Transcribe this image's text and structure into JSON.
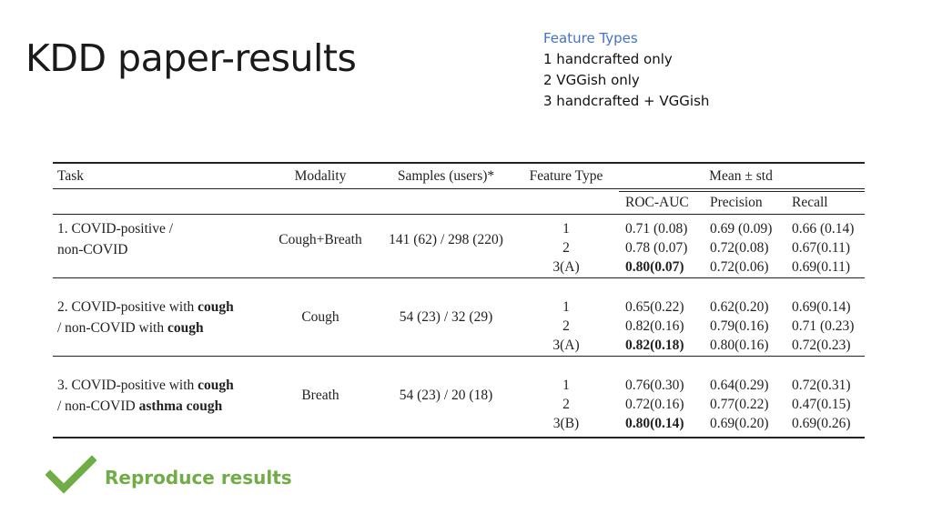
{
  "slide": {
    "title": "KDD paper-results"
  },
  "legend": {
    "title": "Feature Types",
    "items": [
      "1 handcrafted only",
      "2 VGGish only",
      "3 handcrafted + VGGish"
    ]
  },
  "table": {
    "headers": {
      "task": "Task",
      "modality": "Modality",
      "samples": "Samples (users)*",
      "feature_type": "Feature Type",
      "mean_std": "Mean ± std",
      "roc_auc": "ROC-AUC",
      "precision": "Precision",
      "recall": "Recall"
    },
    "groups": [
      {
        "task_line1": "1. COVID-positive /",
        "task_line2": "non-COVID",
        "modality": "Cough+Breath",
        "samples": "141 (62) / 298 (220)",
        "rows": [
          {
            "ft": "1",
            "auc": "0.71 (0.08)",
            "prec": "0.69 (0.09)",
            "rec": "0.66 (0.14)"
          },
          {
            "ft": "2",
            "auc": "0.78 (0.07)",
            "prec": "0.72(0.08)",
            "rec": "0.67(0.11)"
          },
          {
            "ft": "3(A)",
            "auc": "0.80(0.07)",
            "prec": "0.72(0.06)",
            "rec": "0.69(0.11)"
          }
        ]
      },
      {
        "task_line1_a": "2. COVID-positive with ",
        "task_line1_b": "cough",
        "task_line2_a": "/ non-COVID with ",
        "task_line2_b": "cough",
        "modality": "Cough",
        "samples": "54 (23) / 32 (29)",
        "rows": [
          {
            "ft": "1",
            "auc": "0.65(0.22)",
            "prec": "0.62(0.20)",
            "rec": "0.69(0.14)"
          },
          {
            "ft": "2",
            "auc": "0.82(0.16)",
            "prec": "0.79(0.16)",
            "rec": "0.71 (0.23)"
          },
          {
            "ft": "3(A)",
            "auc": "0.82(0.18)",
            "prec": "0.80(0.16)",
            "rec": "0.72(0.23)"
          }
        ]
      },
      {
        "task_line1_a": "3. COVID-positive with ",
        "task_line1_b": "cough",
        "task_line2_a": "/ non-COVID ",
        "task_line2_b": "asthma cough",
        "modality": "Breath",
        "samples": "54 (23) / 20 (18)",
        "rows": [
          {
            "ft": "1",
            "auc": "0.76(0.30)",
            "prec": "0.64(0.29)",
            "rec": "0.72(0.31)"
          },
          {
            "ft": "2",
            "auc": "0.72(0.16)",
            "prec": "0.77(0.22)",
            "rec": "0.47(0.15)"
          },
          {
            "ft": "3(B)",
            "auc": "0.80(0.14)",
            "prec": "0.69(0.20)",
            "rec": "0.69(0.26)"
          }
        ]
      }
    ]
  },
  "footer": {
    "reproduce_label": "Reproduce results",
    "icon": "checkmark-icon",
    "accent_color": "#70ad47"
  }
}
